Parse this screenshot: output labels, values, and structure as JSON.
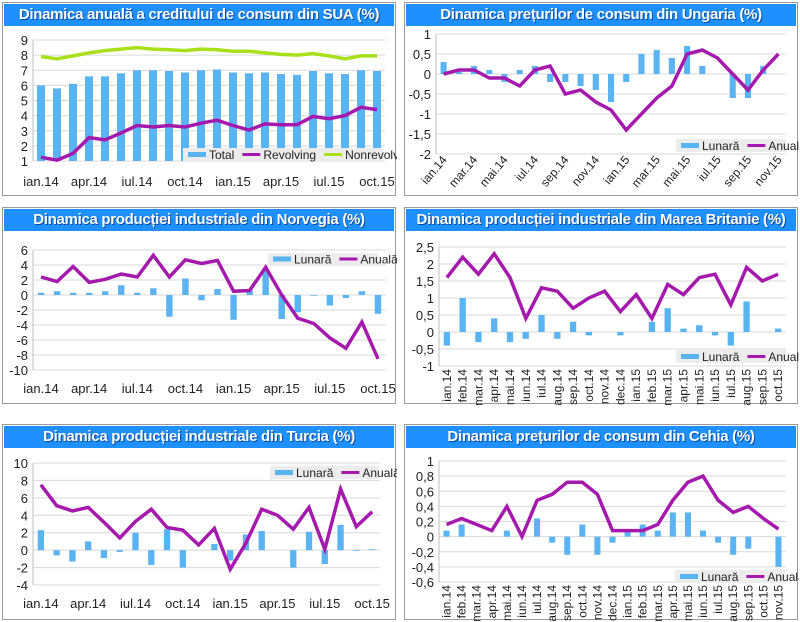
{
  "chart_data": [
    {
      "type": "bar+line",
      "title": "Dinamica anuală a creditului de consum din SUA (%)",
      "categories": [
        "ian.14",
        "feb.14",
        "mar.14",
        "apr.14",
        "mai.14",
        "iun.14",
        "iul.14",
        "aug.14",
        "sep.14",
        "oct.14",
        "nov.14",
        "dec.14",
        "ian.15",
        "feb.15",
        "mar.15",
        "apr.15",
        "mai.15",
        "iun.15",
        "iul.15",
        "aug.15",
        "sep.15",
        "oct.15"
      ],
      "xtick_labels": [
        "ian.14",
        "apr.14",
        "iul.14",
        "oct.14",
        "ian.15",
        "apr.15",
        "iul.15",
        "oct.15"
      ],
      "ylim": [
        1,
        9
      ],
      "yticks": [
        "1",
        "2",
        "3",
        "4",
        "5",
        "6",
        "7",
        "8",
        "9"
      ],
      "grid": true,
      "legend": "bottom-right",
      "series": [
        {
          "name": "Total",
          "kind": "bar",
          "color": "#5ab4f2",
          "values": [
            6.0,
            5.8,
            6.1,
            6.6,
            6.6,
            6.8,
            7.0,
            7.0,
            6.95,
            6.85,
            7.0,
            7.05,
            6.85,
            6.8,
            6.85,
            6.75,
            6.7,
            6.95,
            6.8,
            6.75,
            7.0,
            6.95
          ]
        },
        {
          "name": "Revolving",
          "kind": "line",
          "color": "#a51aad",
          "values": [
            1.25,
            1.05,
            1.5,
            2.55,
            2.4,
            2.85,
            3.35,
            3.25,
            3.35,
            3.25,
            3.5,
            3.7,
            3.35,
            3.05,
            3.45,
            3.4,
            3.4,
            3.95,
            3.8,
            4.0,
            4.55,
            4.4
          ]
        },
        {
          "name": "Nonrevolving",
          "kind": "line",
          "color": "#a8e01a",
          "values": [
            7.9,
            7.75,
            7.95,
            8.15,
            8.3,
            8.4,
            8.5,
            8.4,
            8.35,
            8.3,
            8.4,
            8.35,
            8.25,
            8.25,
            8.15,
            8.05,
            8.0,
            8.1,
            7.95,
            7.75,
            7.95,
            7.95
          ]
        }
      ]
    },
    {
      "type": "bar+line",
      "title": "Dinamica prețurilor de consum din Ungaria (%)",
      "categories": [
        "ian.14",
        "feb.14",
        "mar.14",
        "apr.14",
        "mai.14",
        "iun.14",
        "iul.14",
        "aug.14",
        "sep.14",
        "oct.14",
        "nov.14",
        "dec.14",
        "ian.15",
        "feb.15",
        "mar.15",
        "apr.15",
        "mai.15",
        "iun.15",
        "iul.15",
        "aug.15",
        "sep.15",
        "oct.15",
        "nov.15"
      ],
      "xtick_labels": [
        "ian.14",
        "mar.14",
        "mai.14",
        "iul.14",
        "sep.14",
        "nov.14",
        "ian.15",
        "mar.15",
        "mai.15",
        "iul.15",
        "sep.15",
        "nov.15"
      ],
      "ylim": [
        -2,
        1
      ],
      "yticks": [
        "-2",
        "-1,5",
        "-1",
        "-0,5",
        "0",
        "0,5",
        "1"
      ],
      "grid": true,
      "legend": "bottom-right",
      "series": [
        {
          "name": "Lunară",
          "kind": "bar",
          "color": "#5ab4f2",
          "values": [
            0.3,
            0.05,
            0.2,
            0.1,
            -0.2,
            0.1,
            0.2,
            -0.2,
            -0.2,
            -0.3,
            -0.4,
            -0.7,
            -0.2,
            0.5,
            0.6,
            0.4,
            0.7,
            0.2,
            0,
            -0.6,
            -0.6,
            0.2,
            0
          ]
        },
        {
          "name": "Anuală",
          "kind": "line",
          "color": "#a51aad",
          "values": [
            0,
            0.1,
            0.1,
            -0.1,
            -0.1,
            -0.3,
            0.1,
            0.2,
            -0.5,
            -0.4,
            -0.7,
            -0.9,
            -1.4,
            -1.0,
            -0.6,
            -0.3,
            0.5,
            0.6,
            0.4,
            0,
            -0.4,
            0.1,
            0.5
          ]
        }
      ]
    },
    {
      "type": "bar+line",
      "title": "Dinamica producției industriale din Norvegia (%)",
      "categories": [
        "ian.14",
        "feb.14",
        "mar.14",
        "apr.14",
        "mai.14",
        "iun.14",
        "iul.14",
        "aug.14",
        "sep.14",
        "oct.14",
        "nov.14",
        "dec.14",
        "ian.15",
        "feb.15",
        "mar.15",
        "apr.15",
        "mai.15",
        "iun.15",
        "iul.15",
        "aug.15",
        "sep.15",
        "oct.15"
      ],
      "xtick_labels": [
        "ian.14",
        "apr.14",
        "iul.14",
        "oct.14",
        "ian.15",
        "apr.15",
        "iul.15",
        "oct.15"
      ],
      "ylim": [
        -10,
        6
      ],
      "yticks": [
        "-10",
        "-8",
        "-6",
        "-4",
        "-2",
        "0",
        "2",
        "4",
        "6"
      ],
      "grid": true,
      "legend": "top-right",
      "series": [
        {
          "name": "Lunară",
          "kind": "bar",
          "color": "#5ab4f2",
          "values": [
            0.3,
            0.5,
            0.3,
            0.3,
            0.5,
            1.3,
            0.3,
            0.9,
            -2.9,
            2.2,
            -0.7,
            0.8,
            -3.3,
            0.6,
            3.2,
            -3.2,
            -2.3,
            -0.1,
            -1.4,
            -0.4,
            0.5,
            -2.5
          ]
        },
        {
          "name": "Anuală",
          "kind": "line",
          "color": "#a51aad",
          "values": [
            2.4,
            1.8,
            3.8,
            1.7,
            2.1,
            2.8,
            2.4,
            5.3,
            2.4,
            4.7,
            4.2,
            4.6,
            0.5,
            0.6,
            3.7,
            0.0,
            -3.1,
            -3.8,
            -5.7,
            -7.1,
            -3.6,
            -8.5
          ]
        }
      ]
    },
    {
      "type": "bar+line",
      "title": "Dinamica producției industriale din Marea Britanie (%)",
      "categories": [
        "ian.14",
        "feb.14",
        "mar.14",
        "apr.14",
        "mai.14",
        "iun.14",
        "iul.14",
        "aug.14",
        "sep.14",
        "oct.14",
        "nov.14",
        "dec.14",
        "ian.15",
        "feb.15",
        "mar.15",
        "apr.15",
        "mai.15",
        "iun.15",
        "iul.15",
        "aug.15",
        "sep.15",
        "oct.15"
      ],
      "xtick_labels": [
        "ian.14",
        "feb.14",
        "mar.14",
        "apr.14",
        "mai.14",
        "iun.14",
        "iul.14",
        "aug.14",
        "sep.14",
        "oct.14",
        "nov.14",
        "dec.14",
        "ian.15",
        "feb.15",
        "mar.15",
        "apr.15",
        "mai.15",
        "iun.15",
        "iul.15",
        "aug.15",
        "sep.15",
        "oct.15"
      ],
      "ylim": [
        -1,
        2.5
      ],
      "yticks": [
        "-1",
        "-0,5",
        "0",
        "0,5",
        "1",
        "1,5",
        "2",
        "2,5"
      ],
      "grid": true,
      "legend": "bottom-right",
      "series": [
        {
          "name": "Lunară",
          "kind": "bar",
          "color": "#5ab4f2",
          "values": [
            -0.4,
            1.0,
            -0.3,
            0.4,
            -0.3,
            -0.2,
            0.5,
            -0.2,
            0.3,
            -0.1,
            0,
            -0.1,
            0,
            0.3,
            0.7,
            0.1,
            0.2,
            -0.1,
            -0.4,
            0.9,
            0,
            0.1
          ]
        },
        {
          "name": "Anuală",
          "kind": "line",
          "color": "#a51aad",
          "values": [
            1.6,
            2.2,
            1.7,
            2.3,
            1.6,
            0.4,
            1.3,
            1.2,
            0.7,
            1.0,
            1.2,
            0.6,
            1.1,
            0.4,
            1.4,
            1.1,
            1.6,
            1.7,
            0.8,
            1.9,
            1.5,
            1.7
          ]
        }
      ]
    },
    {
      "type": "bar+line",
      "title": "Dinamica producției industriale din Turcia (%)",
      "categories": [
        "ian.14",
        "feb.14",
        "mar.14",
        "apr.14",
        "mai.14",
        "iun.14",
        "iul.14",
        "aug.14",
        "sep.14",
        "oct.14",
        "nov.14",
        "dec.14",
        "ian.15",
        "feb.15",
        "mar.15",
        "apr.15",
        "mai.15",
        "iun.15",
        "iul.15",
        "aug.15",
        "sep.15",
        "oct.15"
      ],
      "xtick_labels": [
        "ian.14",
        "apr.14",
        "iul.14",
        "oct.14",
        "ian.15",
        "apr.15",
        "iul.15",
        "oct.15"
      ],
      "ylim": [
        -4,
        10
      ],
      "yticks": [
        "-4",
        "-2",
        "0",
        "2",
        "4",
        "6",
        "8",
        "10"
      ],
      "grid": true,
      "legend": "top-right",
      "series": [
        {
          "name": "Lunară",
          "kind": "bar",
          "color": "#5ab4f2",
          "values": [
            2.3,
            -0.6,
            -1.3,
            1.0,
            -0.9,
            -0.2,
            2.0,
            -1.7,
            2.4,
            -2.0,
            0,
            0.7,
            -1.2,
            1.8,
            2.2,
            0,
            -2.0,
            2.1,
            -1.6,
            2.9,
            -0.1,
            0.1
          ]
        },
        {
          "name": "Anuală",
          "kind": "line",
          "color": "#a51aad",
          "values": [
            7.5,
            5.1,
            4.5,
            4.9,
            3.2,
            1.4,
            3.3,
            4.7,
            2.6,
            2.3,
            0.6,
            2.5,
            -2.2,
            0.8,
            4.7,
            4.0,
            2.4,
            4.9,
            0.1,
            7.0,
            2.7,
            4.4
          ]
        }
      ]
    },
    {
      "type": "bar+line",
      "title": "Dinamica prețurilor de consum din Cehia (%)",
      "categories": [
        "ian.14",
        "feb.14",
        "mar.14",
        "apr.14",
        "mai.14",
        "iun.14",
        "iul.14",
        "aug.14",
        "sep.14",
        "oct.14",
        "nov.14",
        "dec.14",
        "ian.15",
        "feb.15",
        "mar.15",
        "apr.15",
        "mai.15",
        "iun.15",
        "iul.15",
        "aug.15",
        "sep.15",
        "oct.15",
        "nov.15"
      ],
      "xtick_labels": [
        "ian.14",
        "feb.14",
        "mar.14",
        "apr.14",
        "mai.14",
        "iun.14",
        "iul.14",
        "aug.14",
        "sep.14",
        "oct.14",
        "nov.14",
        "dec.14",
        "ian.15",
        "feb.15",
        "mar.15",
        "apr.15",
        "mai.15",
        "iun.15",
        "iul.15",
        "aug.15",
        "sep.15",
        "oct.15",
        "nov.15"
      ],
      "ylim": [
        -0.6,
        1
      ],
      "yticks": [
        "-0,6",
        "-0,4",
        "-0,2",
        "0",
        "0,2",
        "0,4",
        "0,6",
        "0,8",
        "1"
      ],
      "grid": true,
      "legend": "bottom-right",
      "series": [
        {
          "name": "Lunară",
          "kind": "bar",
          "color": "#5ab4f2",
          "values": [
            0.08,
            0.16,
            0,
            0,
            0.08,
            0,
            0.24,
            -0.08,
            -0.24,
            0.16,
            -0.24,
            -0.08,
            0.08,
            0.16,
            0.08,
            0.32,
            0.32,
            0.08,
            -0.08,
            -0.24,
            -0.16,
            0,
            -0.4
          ]
        },
        {
          "name": "Anuală",
          "kind": "line",
          "color": "#a51aad",
          "values": [
            0.16,
            0.24,
            0.16,
            0.08,
            0.4,
            0,
            0.48,
            0.56,
            0.72,
            0.72,
            0.56,
            0.08,
            0.08,
            0.08,
            0.16,
            0.48,
            0.72,
            0.8,
            0.48,
            0.32,
            0.4,
            0.24,
            0.1
          ]
        }
      ]
    }
  ]
}
